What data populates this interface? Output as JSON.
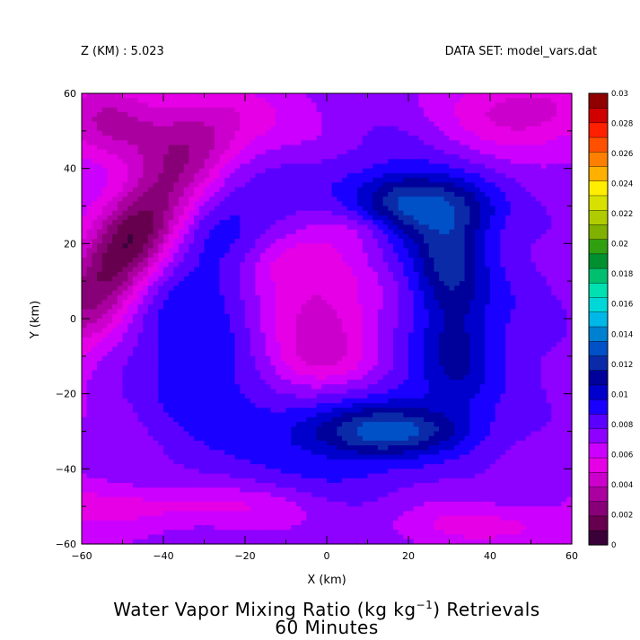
{
  "header": {
    "left_label": "Z (KM) : 5.023",
    "right_label": "DATA SET: model_vars.dat"
  },
  "chart_data": {
    "type": "heatmap",
    "title_line1": "Water Vapor Mixing Ratio (kg kg",
    "title_sup": "−1",
    "title_line1_end": ") Retrievals",
    "title_line2": "60 Minutes",
    "xlabel": "X (km)",
    "ylabel": "Y (km)",
    "xlim": [
      -60,
      60
    ],
    "ylim": [
      -60,
      60
    ],
    "x_ticks": [
      "−60",
      "−40",
      "−20",
      "0",
      "20",
      "40",
      "60"
    ],
    "y_ticks": [
      "−60",
      "−40",
      "−20",
      "0",
      "20",
      "40",
      "60"
    ],
    "x_tick_values": [
      -60,
      -40,
      -20,
      0,
      20,
      40,
      60
    ],
    "y_tick_values": [
      -60,
      -40,
      -20,
      0,
      20,
      40,
      60
    ],
    "colorbar": {
      "min": 0,
      "max": 0.03,
      "step": 0.001,
      "labels": [
        "0.03",
        "0.028",
        "0.026",
        "0.024",
        "0.022",
        "0.02",
        "0.018",
        "0.016",
        "0.014",
        "0.012",
        "0.01",
        "0.008",
        "0.006",
        "0.004",
        "0.002",
        "0"
      ],
      "colors": [
        "#3a003a",
        "#66004e",
        "#880077",
        "#aa00a0",
        "#cc00cc",
        "#e600e6",
        "#cc00ff",
        "#8e00ff",
        "#5b00ff",
        "#1a00ff",
        "#0000cc",
        "#00009a",
        "#0a2aa8",
        "#0050c8",
        "#0080d0",
        "#00b8e8",
        "#00d8d8",
        "#00e0b0",
        "#00c070",
        "#009030",
        "#30a010",
        "#80b000",
        "#b0cc00",
        "#d8e000",
        "#ffee00",
        "#ffb000",
        "#ff8000",
        "#ff5000",
        "#ff2000",
        "#d00000",
        "#900000"
      ]
    },
    "features": [
      {
        "name": "background_level",
        "value": 0.007
      },
      {
        "name": "outer_ring_moisture",
        "center": [
          0,
          0
        ],
        "radius": 45,
        "value": 0.009
      },
      {
        "name": "ring_inner_band",
        "center": [
          5,
          0
        ],
        "radius": 32,
        "value": 0.0105
      },
      {
        "name": "northeast_moist_arc",
        "center": [
          25,
          30
        ],
        "value": 0.014
      },
      {
        "name": "southern_moist_band",
        "center": [
          15,
          -30
        ],
        "value": 0.012
      },
      {
        "name": "dry_core",
        "center": [
          0,
          5
        ],
        "radius": 22,
        "value": 0.005
      },
      {
        "name": "dry_core_minimum_north",
        "center": [
          -12,
          15
        ],
        "value": 0.004
      },
      {
        "name": "dry_core_minimum_south",
        "center": [
          -2,
          -12
        ],
        "value": 0.004
      },
      {
        "name": "northwest_dry_tongue",
        "center": [
          -48,
          20
        ],
        "value": 0.001
      },
      {
        "name": "northeast_corner_dry",
        "center": [
          50,
          55
        ],
        "value": 0.004
      },
      {
        "name": "southwest_dry_band",
        "center": [
          -35,
          -50
        ],
        "value": 0.005
      }
    ]
  }
}
